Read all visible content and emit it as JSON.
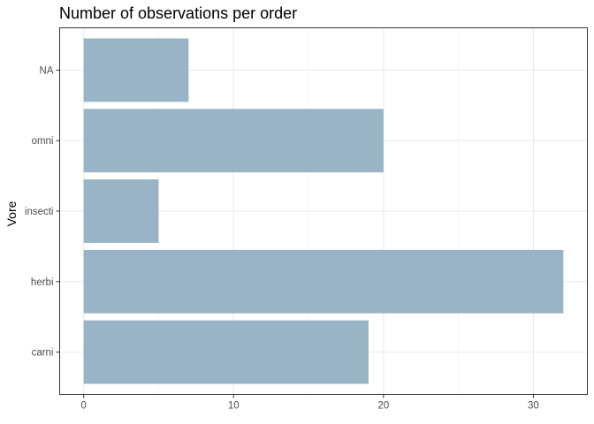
{
  "chart_data": {
    "type": "bar",
    "orientation": "horizontal",
    "title": "Number of observations per order",
    "xlabel": "",
    "ylabel": "Vore",
    "categories": [
      "carni",
      "herbi",
      "insecti",
      "omni",
      "NA"
    ],
    "values": [
      19,
      32,
      5,
      20,
      7
    ],
    "xlim": [
      -1.6,
      33.6
    ],
    "xticks": [
      0,
      10,
      20,
      30
    ],
    "grid": true,
    "legend": "none",
    "bar_color": "#98B4C6"
  }
}
